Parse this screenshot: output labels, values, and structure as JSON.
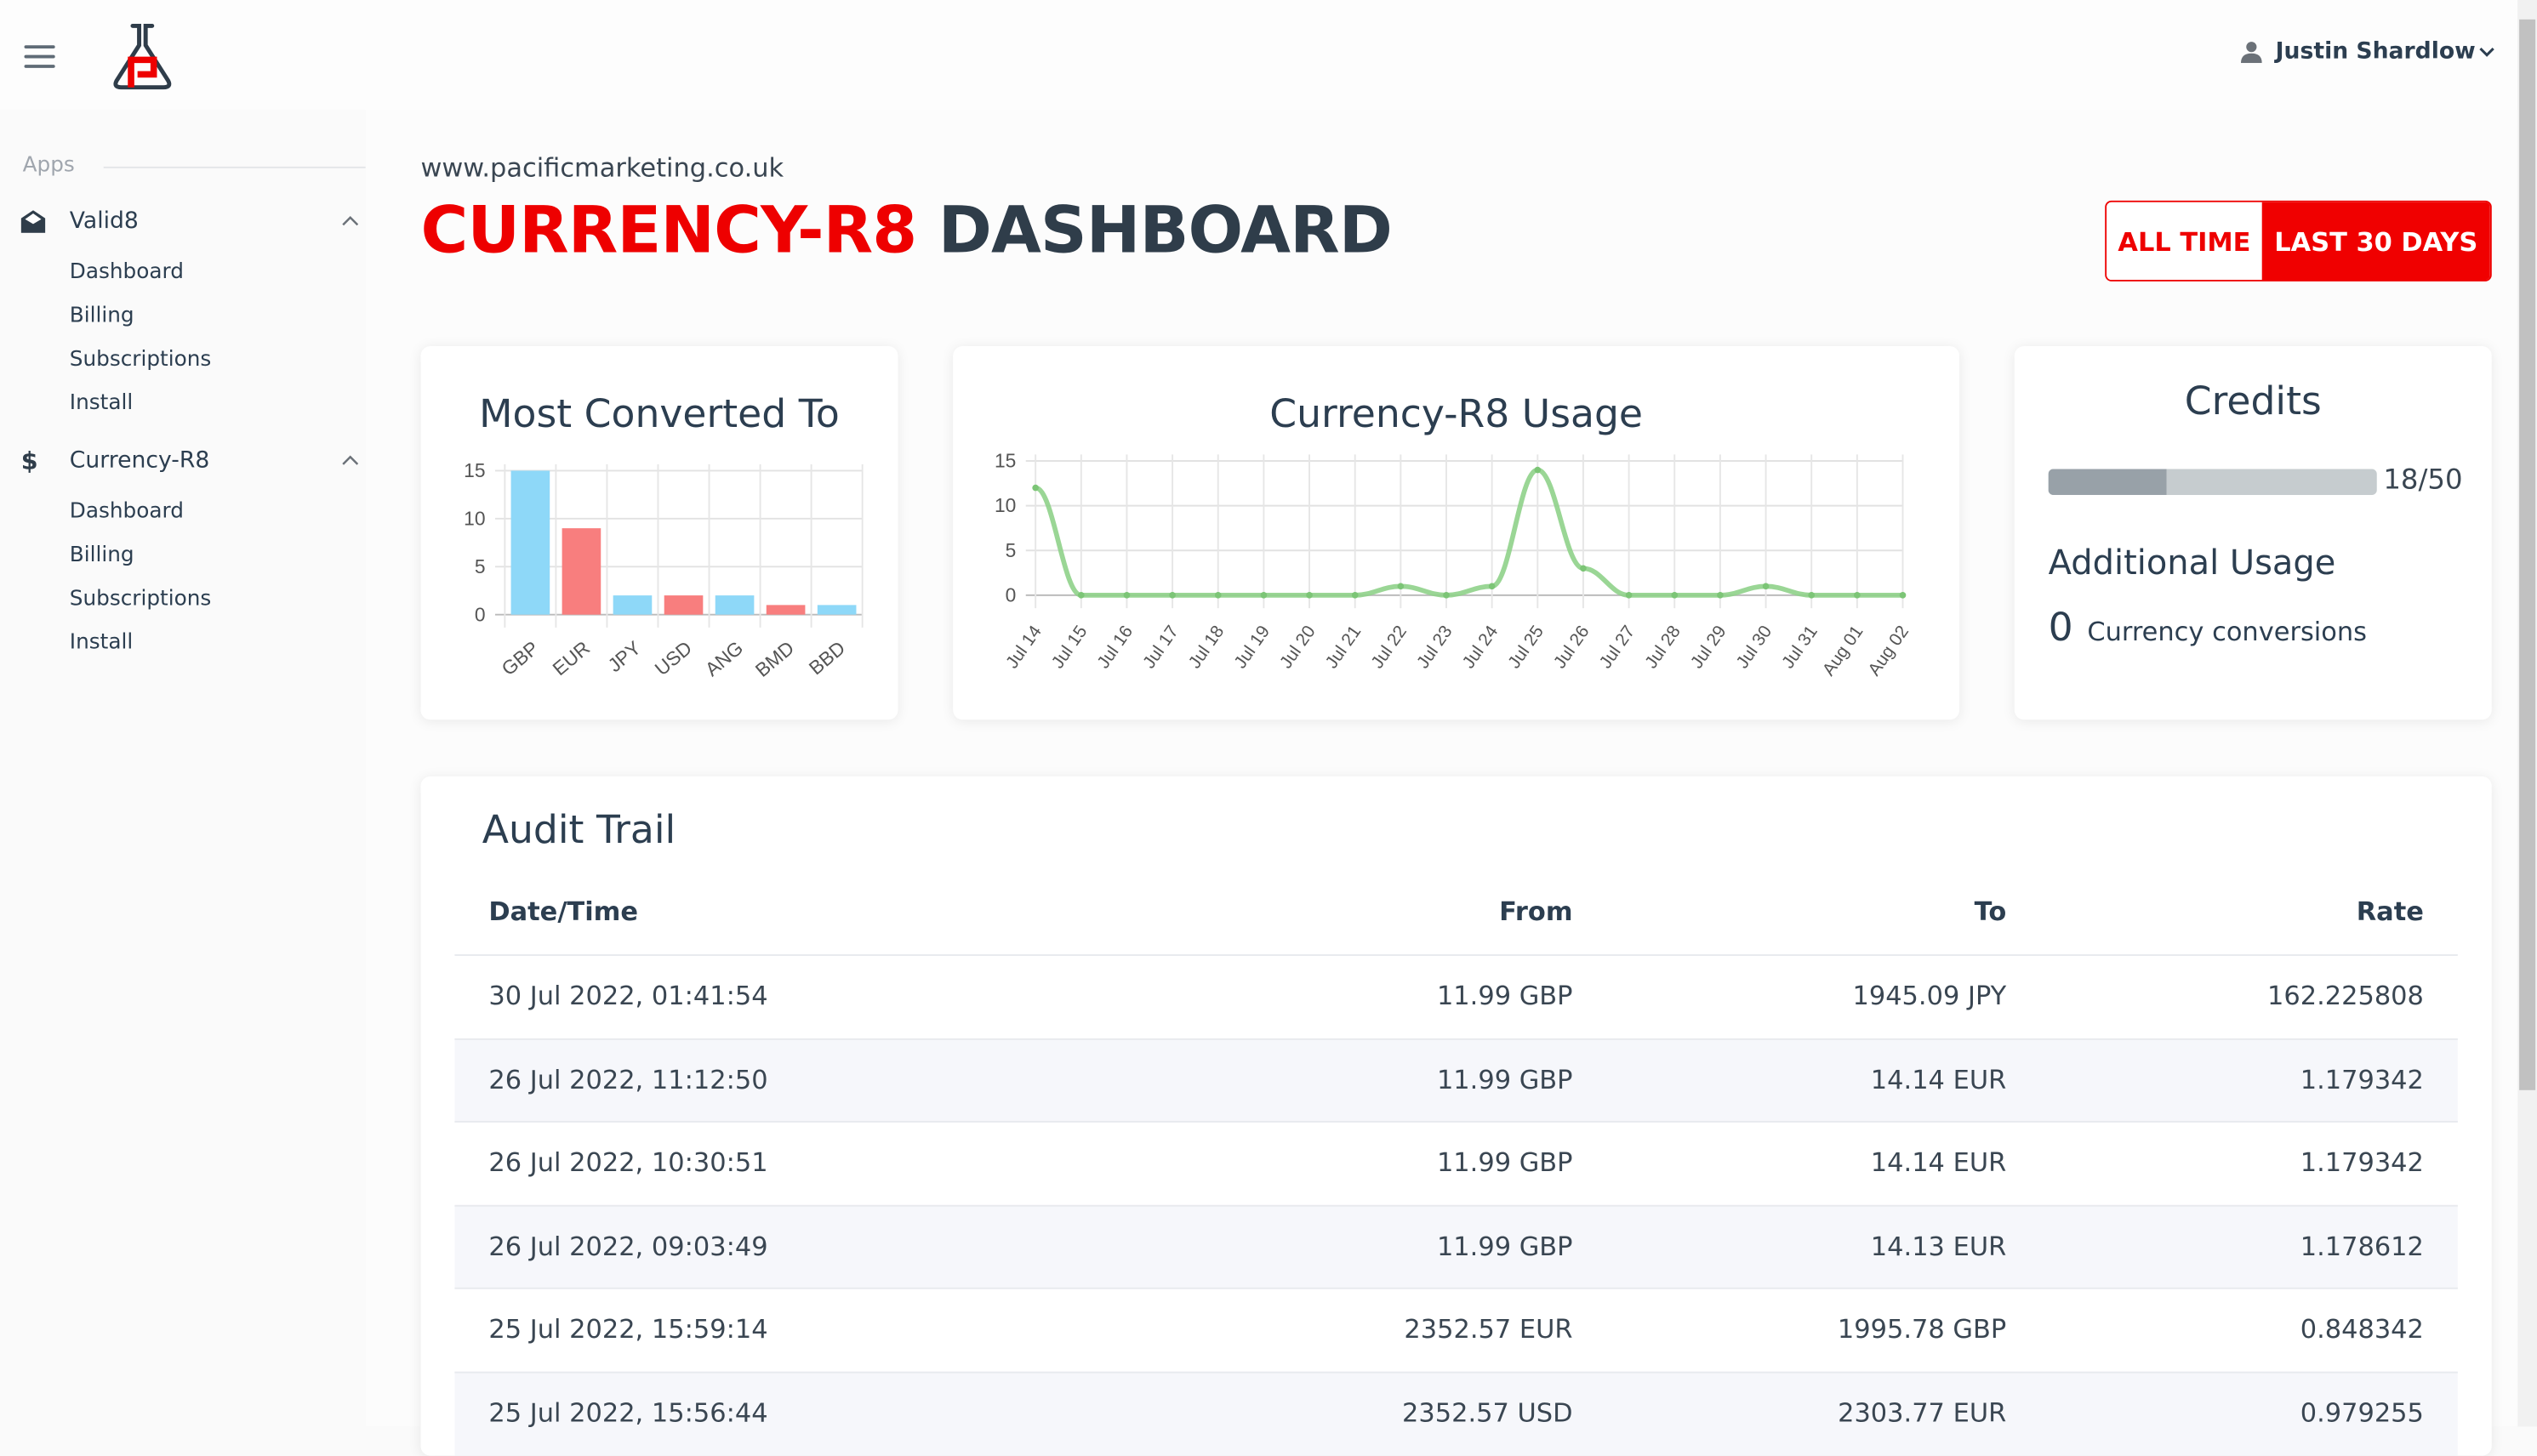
{
  "header": {
    "user_name": "Justin Shardlow",
    "icons": [
      "menu-icon",
      "flask-logo",
      "user-icon",
      "chevron-down-icon"
    ]
  },
  "sidebar": {
    "section_label": "Apps",
    "apps": [
      {
        "label": "Valid8",
        "icon": "envelope-open-icon",
        "items": [
          "Dashboard",
          "Billing",
          "Subscriptions",
          "Install"
        ]
      },
      {
        "label": "Currency-R8",
        "icon": "dollar-icon",
        "items": [
          "Dashboard",
          "Billing",
          "Subscriptions",
          "Install"
        ]
      }
    ]
  },
  "page": {
    "site": "www.pacificmarketing.co.uk",
    "title_accent": "CURRENCY-R8",
    "title_rest": "DASHBOARD",
    "accent_color": "#ee0000"
  },
  "range": {
    "all_time": "ALL TIME",
    "last_30": "LAST 30 DAYS",
    "selected": "LAST 30 DAYS"
  },
  "credits": {
    "title": "Credits",
    "used": 18,
    "total": 50,
    "label": "18/50",
    "additional_title": "Additional Usage",
    "additional_count": "0",
    "additional_unit": "Currency conversions"
  },
  "chart_data": [
    {
      "type": "bar",
      "title": "Most Converted To",
      "categories": [
        "GBP",
        "EUR",
        "JPY",
        "USD",
        "ANG",
        "BMD",
        "BBD"
      ],
      "values": [
        15,
        9,
        2,
        2,
        2,
        1,
        1
      ],
      "colors": [
        "#8ed8f8",
        "#f87e7e",
        "#8ed8f8",
        "#f87e7e",
        "#8ed8f8",
        "#f87e7e",
        "#8ed8f8"
      ],
      "ylim": [
        0,
        15
      ],
      "yticks": [
        0,
        5,
        10,
        15
      ],
      "grid": true
    },
    {
      "type": "line",
      "title": "Currency-R8 Usage",
      "categories": [
        "Jul 14",
        "Jul 15",
        "Jul 16",
        "Jul 17",
        "Jul 18",
        "Jul 19",
        "Jul 20",
        "Jul 21",
        "Jul 22",
        "Jul 23",
        "Jul 24",
        "Jul 25",
        "Jul 26",
        "Jul 27",
        "Jul 28",
        "Jul 29",
        "Jul 30",
        "Jul 31",
        "Aug 01",
        "Aug 02"
      ],
      "values": [
        12,
        0,
        0,
        0,
        0,
        0,
        0,
        0,
        1,
        0,
        1,
        14,
        3,
        0,
        0,
        0,
        1,
        0,
        0,
        0
      ],
      "color": "#8fd18a",
      "ylim": [
        0,
        15
      ],
      "yticks": [
        0,
        5,
        10,
        15
      ],
      "grid": true
    }
  ],
  "audit": {
    "title": "Audit Trail",
    "columns": [
      "Date/Time",
      "From",
      "To",
      "Rate"
    ],
    "rows": [
      [
        "30 Jul 2022, 01:41:54",
        "11.99 GBP",
        "1945.09 JPY",
        "162.225808"
      ],
      [
        "26 Jul 2022, 11:12:50",
        "11.99 GBP",
        "14.14 EUR",
        "1.179342"
      ],
      [
        "26 Jul 2022, 10:30:51",
        "11.99 GBP",
        "14.14 EUR",
        "1.179342"
      ],
      [
        "26 Jul 2022, 09:03:49",
        "11.99 GBP",
        "14.13 EUR",
        "1.178612"
      ],
      [
        "25 Jul 2022, 15:59:14",
        "2352.57 EUR",
        "1995.78 GBP",
        "0.848342"
      ],
      [
        "25 Jul 2022, 15:56:44",
        "2352.57 USD",
        "2303.77 EUR",
        "0.979255"
      ]
    ]
  }
}
